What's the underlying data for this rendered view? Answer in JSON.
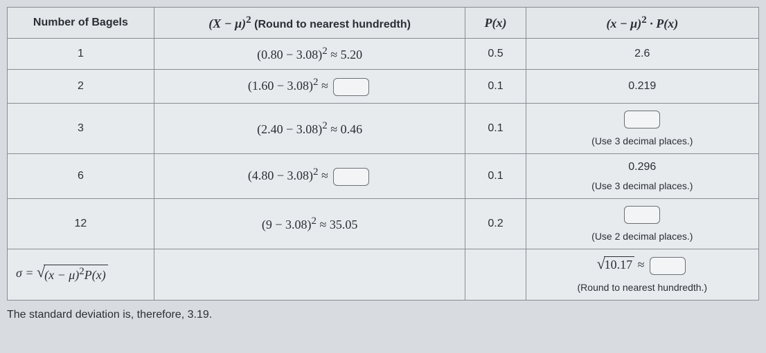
{
  "headers": {
    "col1": "Number of Bagels",
    "col2_prefix": "(X − μ)",
    "col2_exp": "2",
    "col2_suffix": " (Round to nearest hundredth)",
    "col3": "P(x)",
    "col4_prefix": "(x − μ)",
    "col4_exp": "2",
    "col4_suffix": " · P(x)"
  },
  "rows": [
    {
      "n": "1",
      "expr_l": "(0.80 − 3.08)",
      "expr_r": " ≈ 5.20",
      "has_input_mid": false,
      "p": "0.5",
      "result": "2.6",
      "result_is_input": false,
      "hint": ""
    },
    {
      "n": "2",
      "expr_l": "(1.60 − 3.08)",
      "expr_r": " ≈ ",
      "has_input_mid": true,
      "p": "0.1",
      "result": "0.219",
      "result_is_input": false,
      "hint": ""
    },
    {
      "n": "3",
      "expr_l": "(2.40 − 3.08)",
      "expr_r": " ≈ 0.46",
      "has_input_mid": false,
      "p": "0.1",
      "result": "",
      "result_is_input": true,
      "hint": "(Use 3 decimal places.)"
    },
    {
      "n": "6",
      "expr_l": "(4.80 − 3.08)",
      "expr_r": " ≈ ",
      "has_input_mid": true,
      "p": "0.1",
      "result": "0.296",
      "result_is_input": false,
      "hint": "(Use 3 decimal places.)"
    },
    {
      "n": "12",
      "expr_l": "(9 − 3.08)",
      "expr_r": " ≈ 35.05",
      "has_input_mid": false,
      "p": "0.2",
      "result": "",
      "result_is_input": true,
      "hint": "(Use 2 decimal places.)"
    }
  ],
  "sigma_row": {
    "label_sigma": "σ = ",
    "radicand_l": "(x − μ)",
    "radicand_exp": "2",
    "radicand_r": "P(x)",
    "result_radicand": "10.17",
    "approx": " ≈ ",
    "hint": "(Round to nearest hundredth.)"
  },
  "footer": "The standard deviation is, therefore, 3.19.",
  "colors": {
    "page_bg": "#d8dce0",
    "table_bg": "#e8ebee",
    "border": "#888c90",
    "text": "#2a2f35",
    "input_border": "#6a6f75",
    "input_bg": "#f2f4f6"
  }
}
